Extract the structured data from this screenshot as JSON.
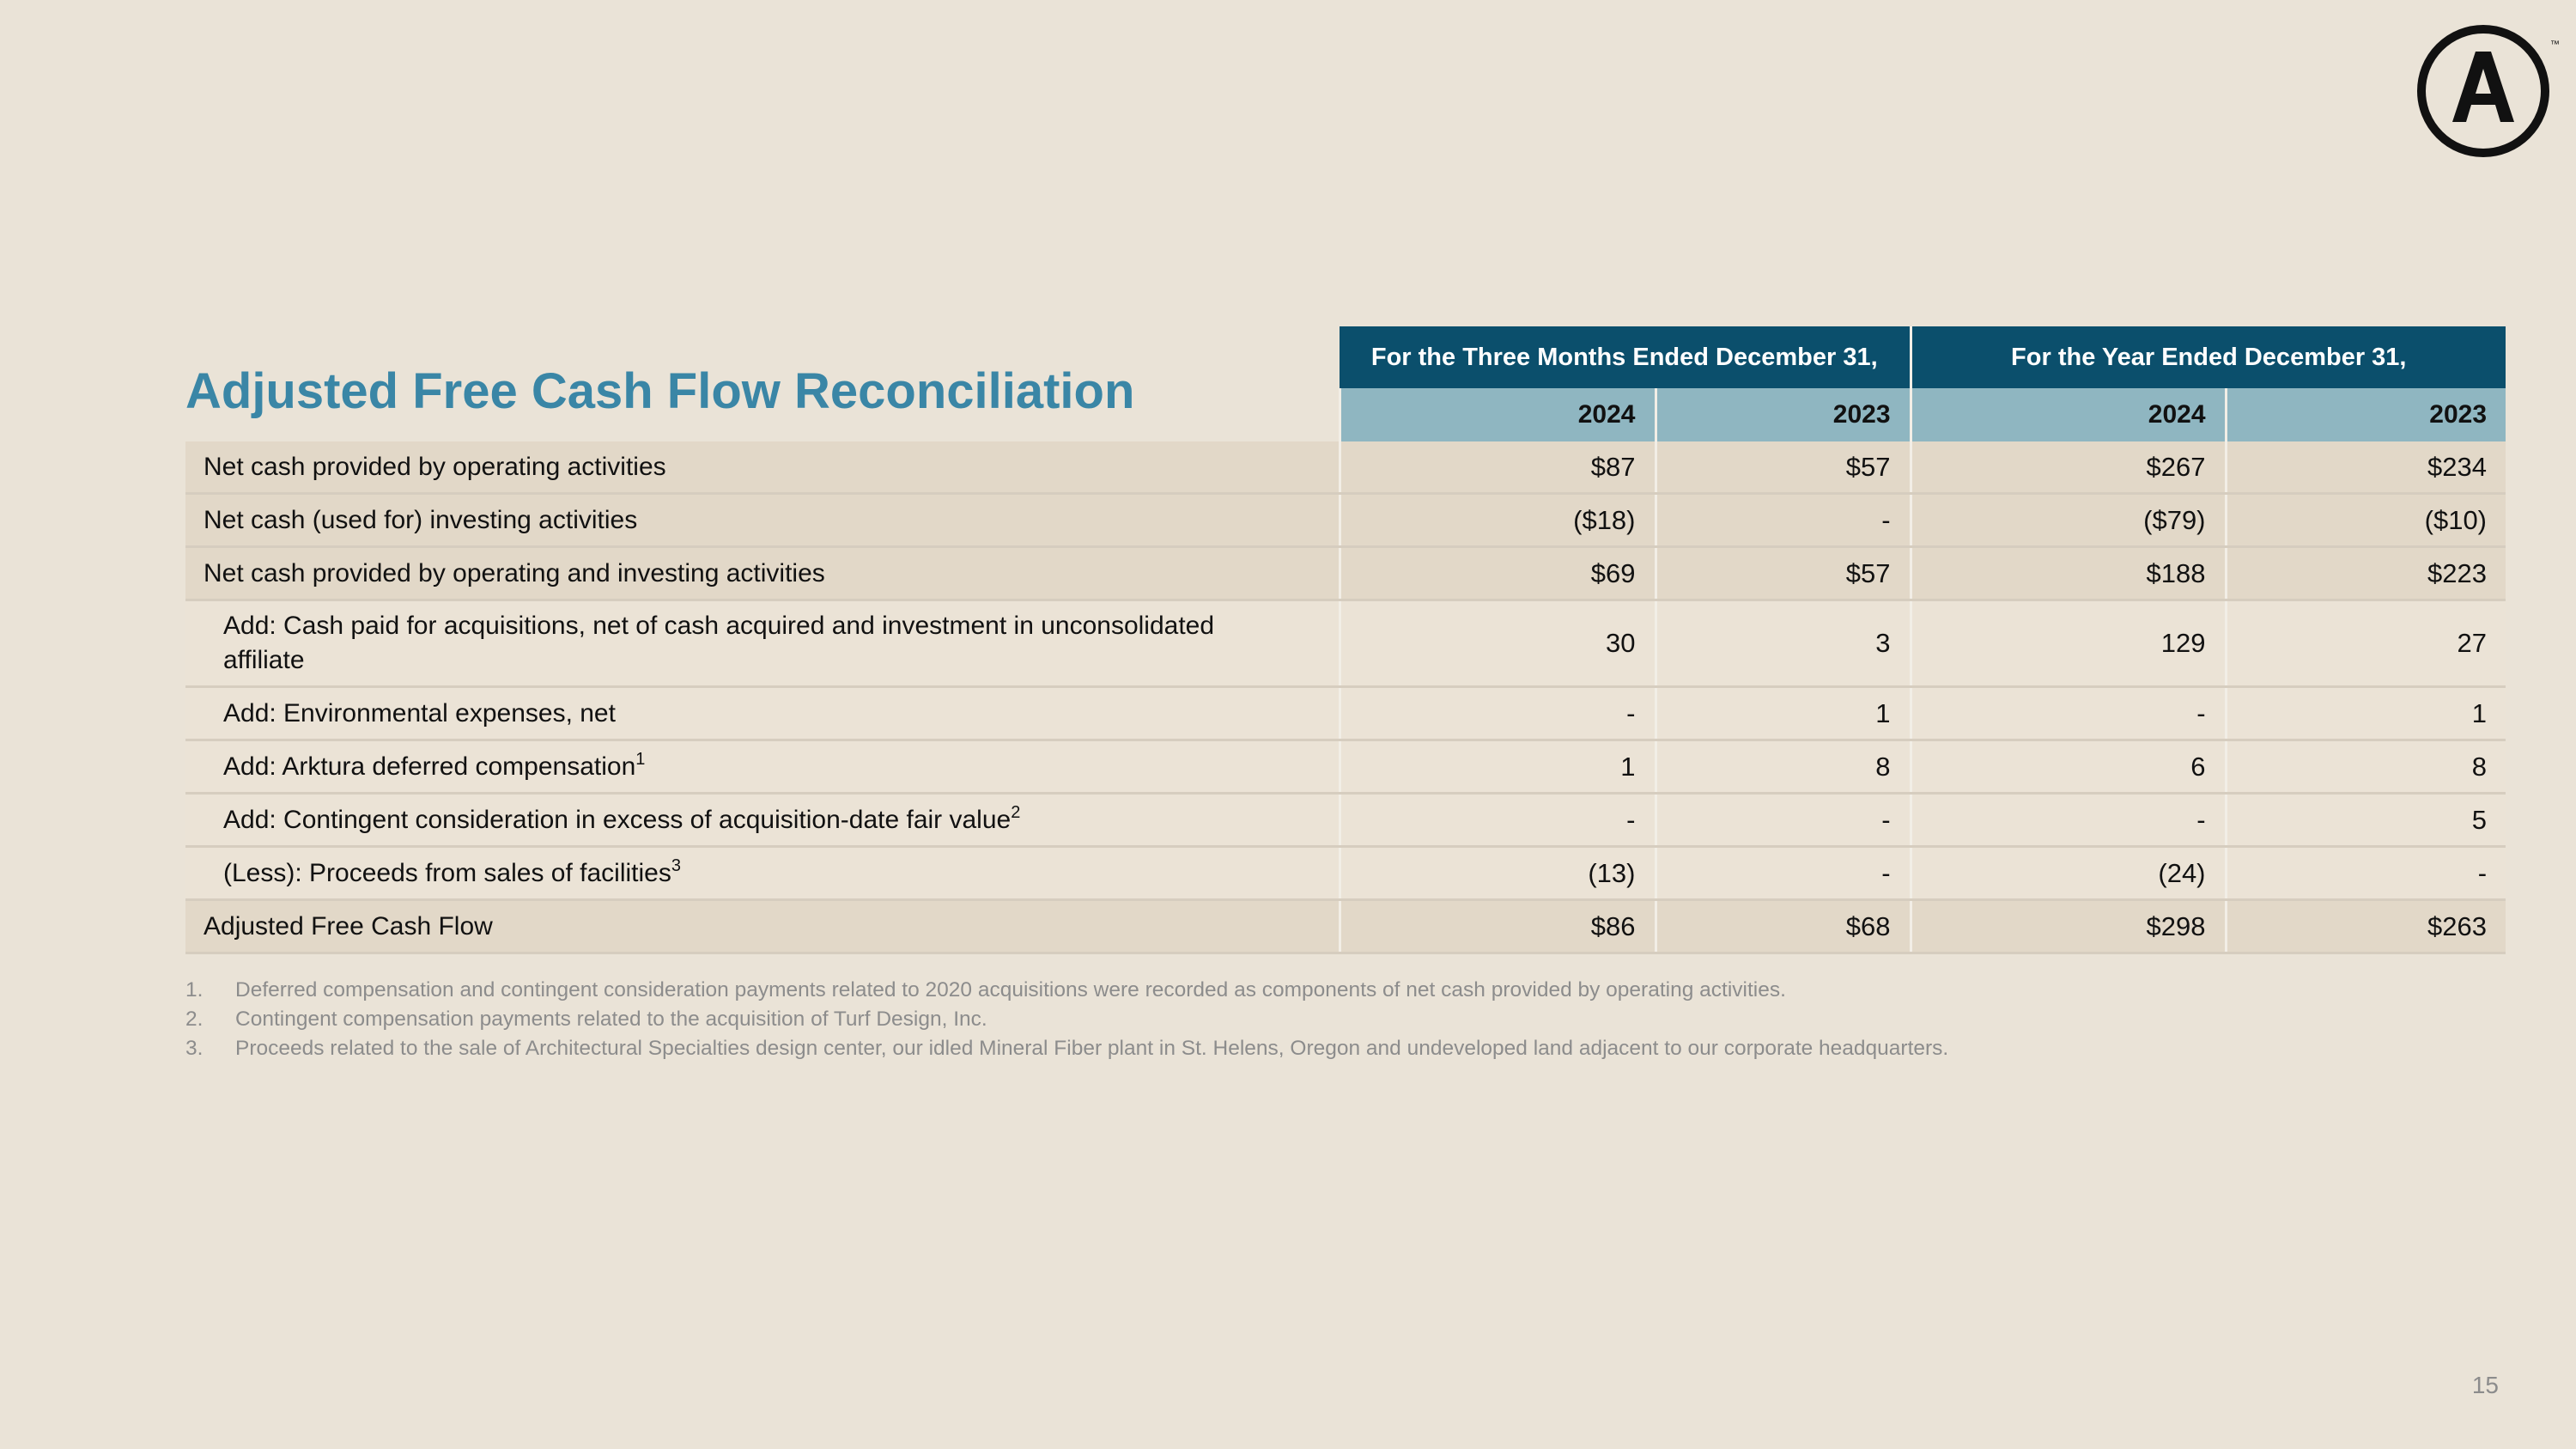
{
  "logo": {
    "icon": "armstrong-a-logo",
    "tm": "™"
  },
  "title": "Adjusted Free Cash Flow Reconciliation",
  "headers": {
    "group1": "For the Three Months Ended December 31,",
    "group2": "For the Year Ended December 31,",
    "years": [
      "2024",
      "2023",
      "2024",
      "2023"
    ]
  },
  "rows": [
    {
      "label": "Net cash provided by operating activities",
      "sup": "",
      "values": [
        "$87",
        "$57",
        "$267",
        "$234"
      ]
    },
    {
      "label": "Net cash (used for) investing activities",
      "sup": "",
      "values": [
        "($18)",
        "-",
        "($79)",
        "($10)"
      ]
    },
    {
      "label": "Net cash provided by operating and investing activities",
      "sup": "",
      "values": [
        "$69",
        "$57",
        "$188",
        "$223"
      ]
    },
    {
      "label": "Add: Cash paid for acquisitions, net of cash acquired and investment in unconsolidated affiliate",
      "sup": "",
      "values": [
        "30",
        "3",
        "129",
        "27"
      ]
    },
    {
      "label": "Add: Environmental expenses, net",
      "sup": "",
      "values": [
        "-",
        "1",
        "-",
        "1"
      ]
    },
    {
      "label": "Add: Arktura deferred compensation",
      "sup": "1",
      "values": [
        "1",
        "8",
        "6",
        "8"
      ]
    },
    {
      "label": "Add: Contingent consideration in excess of acquisition-date fair value",
      "sup": "2",
      "values": [
        "-",
        "-",
        "-",
        "5"
      ]
    },
    {
      "label": "(Less): Proceeds from sales of facilities",
      "sup": "3",
      "values": [
        "(13)",
        "-",
        "(24)",
        "-"
      ]
    },
    {
      "label": "Adjusted Free Cash Flow",
      "sup": "",
      "values": [
        "$86",
        "$68",
        "$298",
        "$263"
      ]
    }
  ],
  "footnotes": [
    {
      "num": "1.",
      "text": "Deferred compensation and contingent consideration payments related to 2020 acquisitions were recorded as components of net cash provided by operating activities."
    },
    {
      "num": "2.",
      "text": "Contingent compensation payments related to the acquisition of Turf Design, Inc."
    },
    {
      "num": "3.",
      "text": "Proceeds related to the sale of Architectural Specialties design center, our idled Mineral Fiber plant in St. Helens, Oregon and undeveloped land adjacent to our corporate headquarters."
    }
  ],
  "page_number": "15"
}
